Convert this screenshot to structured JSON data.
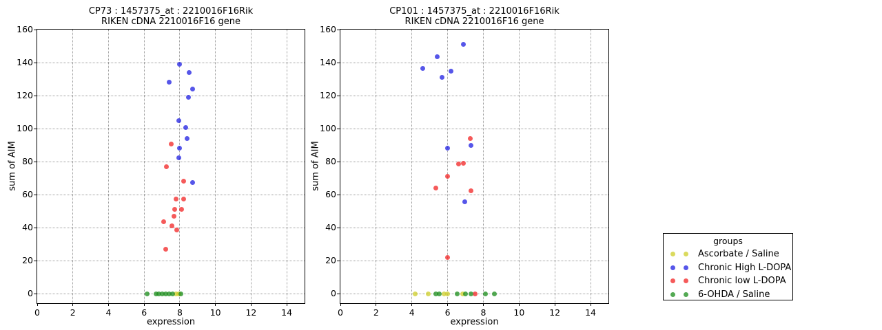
{
  "figure": {
    "background": "#ffffff"
  },
  "legend": {
    "title": "groups",
    "entries": [
      {
        "label": "Ascorbate / Saline",
        "color": "#cdcd28"
      },
      {
        "label": "Chronic High L-DOPA",
        "color": "#1e1ee1"
      },
      {
        "label": "Chronic low L-DOPA",
        "color": "#f22323"
      },
      {
        "label": "6-OHDA / Saline",
        "color": "#198c19"
      }
    ]
  },
  "chart_data": [
    {
      "type": "scatter",
      "title_line1": "CP73 : 1457375_at : 2210016F16Rik",
      "title_line2": "RIKEN cDNA 2210016F16 gene",
      "xlabel": "expression",
      "ylabel": "sum of AIM",
      "xlim": [
        0,
        15
      ],
      "ylim": [
        0,
        160
      ],
      "xticks": [
        0,
        2,
        4,
        6,
        8,
        10,
        12,
        14
      ],
      "yticks": [
        0,
        20,
        40,
        60,
        80,
        100,
        120,
        140,
        160
      ],
      "grid": true,
      "series": [
        {
          "name": "Ascorbate / Saline",
          "color": "#cdcd28",
          "points": [
            [
              7.8,
              0
            ],
            [
              7.95,
              0
            ]
          ]
        },
        {
          "name": "Chronic High L-DOPA",
          "color": "#1e1ee1",
          "points": [
            [
              7.41,
              128
            ],
            [
              7.93,
              105
            ],
            [
              7.93,
              82.5
            ],
            [
              7.97,
              88
            ],
            [
              8.0,
              139
            ],
            [
              8.35,
              100.5
            ],
            [
              8.4,
              94
            ],
            [
              8.48,
              119
            ],
            [
              8.54,
              134
            ],
            [
              8.7,
              67.5
            ],
            [
              8.73,
              124
            ]
          ]
        },
        {
          "name": "Chronic low L-DOPA",
          "color": "#f22323",
          "points": [
            [
              7.08,
              43.5
            ],
            [
              7.21,
              27
            ],
            [
              7.25,
              77
            ],
            [
              7.5,
              90.5
            ],
            [
              7.54,
              41
            ],
            [
              7.67,
              47
            ],
            [
              7.7,
              51
            ],
            [
              7.78,
              57.5
            ],
            [
              7.83,
              38.5
            ],
            [
              8.1,
              51
            ],
            [
              8.2,
              57.5
            ],
            [
              8.2,
              68
            ]
          ]
        },
        {
          "name": "6-OHDA / Saline",
          "color": "#198c19",
          "points": [
            [
              6.15,
              0
            ],
            [
              6.65,
              0
            ],
            [
              6.83,
              0
            ],
            [
              7.03,
              0
            ],
            [
              7.22,
              0
            ],
            [
              7.41,
              0
            ],
            [
              7.58,
              0
            ],
            [
              8.07,
              0
            ]
          ]
        }
      ]
    },
    {
      "type": "scatter",
      "title_line1": "CP101 : 1457375_at : 2210016F16Rik",
      "title_line2": "RIKEN cDNA 2210016F16 gene",
      "xlabel": "expression",
      "ylabel": "sum of AIM",
      "xlim": [
        0,
        15
      ],
      "ylim": [
        0,
        160
      ],
      "xticks": [
        0,
        2,
        4,
        6,
        8,
        10,
        12,
        14
      ],
      "yticks": [
        0,
        20,
        40,
        60,
        80,
        100,
        120,
        140,
        160
      ],
      "grid": true,
      "series": [
        {
          "name": "Ascorbate / Saline",
          "color": "#cdcd28",
          "points": [
            [
              4.2,
              0
            ],
            [
              4.9,
              0
            ],
            [
              5.8,
              0
            ],
            [
              6.0,
              0
            ],
            [
              6.85,
              0
            ]
          ]
        },
        {
          "name": "Chronic High L-DOPA",
          "color": "#1e1ee1",
          "points": [
            [
              4.6,
              136.5
            ],
            [
              5.4,
              143.5
            ],
            [
              5.7,
              131
            ],
            [
              6.2,
              135
            ],
            [
              6.9,
              151
            ],
            [
              6.0,
              88
            ],
            [
              7.3,
              90
            ],
            [
              6.95,
              55.5
            ]
          ]
        },
        {
          "name": "Chronic low L-DOPA",
          "color": "#f22323",
          "points": [
            [
              5.35,
              64
            ],
            [
              6.0,
              71
            ],
            [
              6.0,
              22
            ],
            [
              6.6,
              78.5
            ],
            [
              6.9,
              79
            ],
            [
              7.25,
              94
            ],
            [
              7.3,
              62.5
            ],
            [
              7.55,
              0
            ]
          ]
        },
        {
          "name": "6-OHDA / Saline",
          "color": "#198c19",
          "points": [
            [
              5.35,
              0
            ],
            [
              5.55,
              0
            ],
            [
              6.55,
              0
            ],
            [
              7.0,
              0
            ],
            [
              7.3,
              0
            ],
            [
              8.1,
              0
            ],
            [
              8.6,
              0
            ]
          ]
        }
      ]
    }
  ]
}
